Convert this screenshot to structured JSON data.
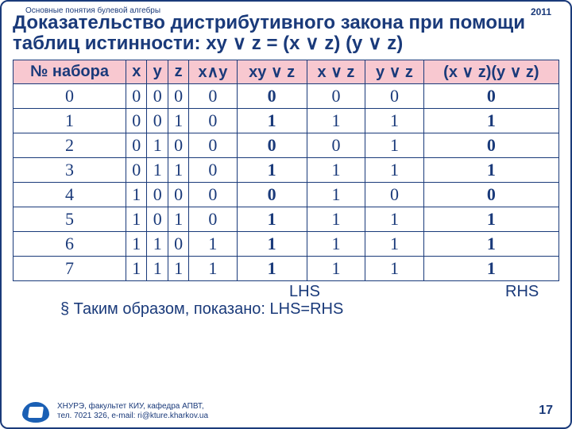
{
  "header": {
    "topleft": "Основные понятия булевой алгебры",
    "topright": "2011",
    "title": "Доказательство дистрибутивного закона при помощи таблиц истинности: xy ∨ z = (x ∨ z) (y ∨ z)"
  },
  "table": {
    "columns": [
      "№ набора",
      "x",
      "y",
      "z",
      "x∧y",
      "xy ∨ z",
      "x ∨ z",
      "y ∨ z",
      "(x ∨ z)(y ∨ z)"
    ],
    "rows": [
      [
        "0",
        "0",
        "0",
        "0",
        "0",
        "0",
        "0",
        "0",
        "0"
      ],
      [
        "1",
        "0",
        "0",
        "1",
        "0",
        "1",
        "1",
        "1",
        "1"
      ],
      [
        "2",
        "0",
        "1",
        "0",
        "0",
        "0",
        "0",
        "1",
        "0"
      ],
      [
        "3",
        "0",
        "1",
        "1",
        "0",
        "1",
        "1",
        "1",
        "1"
      ],
      [
        "4",
        "1",
        "0",
        "0",
        "0",
        "0",
        "1",
        "0",
        "0"
      ],
      [
        "5",
        "1",
        "0",
        "1",
        "0",
        "1",
        "1",
        "1",
        "1"
      ],
      [
        "6",
        "1",
        "1",
        "0",
        "1",
        "1",
        "1",
        "1",
        "1"
      ],
      [
        "7",
        "1",
        "1",
        "1",
        "1",
        "1",
        "1",
        "1",
        "1"
      ]
    ],
    "bold_cols": [
      5,
      8
    ]
  },
  "below": {
    "lhs": "LHS",
    "rhs": "RHS",
    "conclusion": "§ Таким образом, показано: LHS=RHS"
  },
  "footer": {
    "line1": "ХНУРЭ, факультет КИУ, кафедра АПВТ,",
    "line2": "тел. 7021 326, e-mail: ri@kture.kharkov.ua",
    "pagenum": "17"
  },
  "styling": {
    "border_color": "#1a3a7a",
    "text_color": "#1a3a7a",
    "header_bg": "#f8c8d0",
    "title_fontsize": 24,
    "table_fontsize": 20,
    "small_fontsize": 10
  }
}
